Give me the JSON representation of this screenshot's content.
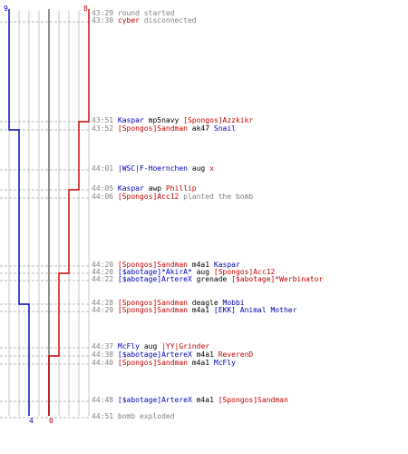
{
  "round": {
    "blue_start": "9",
    "red_start": "8",
    "blue_end": "4",
    "red_end": "0",
    "colors": {
      "blue": "#0000b0",
      "red": "#c00000",
      "time": "#808080",
      "grid": "#c8c8c8"
    }
  },
  "events": [
    {
      "time": "43:29",
      "parts": [
        {
          "text": "round started",
          "c": "sys"
        }
      ]
    },
    {
      "time": "43:30",
      "parts": [
        {
          "text": "cyber",
          "c": "n-red"
        },
        {
          "text": " disconnected",
          "c": "sys"
        }
      ]
    },
    {
      "time": "43:51",
      "parts": [
        {
          "text": "Kaspar",
          "c": "n-blue"
        },
        {
          "text": " mp5navy ",
          "c": "w"
        },
        {
          "text": "[Spongos]Azzkikr",
          "c": "n-red"
        }
      ]
    },
    {
      "time": "43:52",
      "parts": [
        {
          "text": "[Spongos]Sandman",
          "c": "n-red"
        },
        {
          "text": " ak47 ",
          "c": "w"
        },
        {
          "text": "Snail",
          "c": "n-blue"
        }
      ]
    },
    {
      "time": "44:01",
      "parts": [
        {
          "text": "|WSC|F-Hoernchen",
          "c": "n-blue"
        },
        {
          "text": " aug ",
          "c": "w"
        },
        {
          "text": "x",
          "c": "n-red"
        }
      ]
    },
    {
      "time": "44:05",
      "parts": [
        {
          "text": "Kaspar",
          "c": "n-blue"
        },
        {
          "text": " awp ",
          "c": "w"
        },
        {
          "text": "Phillip",
          "c": "n-red"
        }
      ]
    },
    {
      "time": "44:06",
      "parts": [
        {
          "text": "[Spongos]Acc12",
          "c": "n-red"
        },
        {
          "text": " planted the bomb",
          "c": "sys"
        }
      ]
    },
    {
      "time": "44:20",
      "parts": [
        {
          "text": "[Spongos]Sandman",
          "c": "n-red"
        },
        {
          "text": " m4a1 ",
          "c": "w"
        },
        {
          "text": "Kaspar",
          "c": "n-blue"
        }
      ]
    },
    {
      "time": "44:20",
      "parts": [
        {
          "text": "[$abotage]*AkirA*",
          "c": "n-blue"
        },
        {
          "text": " aug ",
          "c": "w"
        },
        {
          "text": "[Spongos]Acc12",
          "c": "n-red"
        }
      ]
    },
    {
      "time": "44:22",
      "parts": [
        {
          "text": "[$abotage]ArtereX",
          "c": "n-blue"
        },
        {
          "text": " grenade ",
          "c": "w"
        },
        {
          "text": "[$abotage]*Werbinator",
          "c": "n-red"
        }
      ]
    },
    {
      "time": "44:28",
      "parts": [
        {
          "text": "[Spongos]Sandman",
          "c": "n-red"
        },
        {
          "text": " deagle ",
          "c": "w"
        },
        {
          "text": "Mobbi",
          "c": "n-blue"
        }
      ]
    },
    {
      "time": "44:29",
      "parts": [
        {
          "text": "[Spongos]Sandman",
          "c": "n-red"
        },
        {
          "text": " m4a1 ",
          "c": "w"
        },
        {
          "text": "[EKK] Animal Mother",
          "c": "n-blue"
        }
      ]
    },
    {
      "time": "44:37",
      "parts": [
        {
          "text": "McFly",
          "c": "n-blue"
        },
        {
          "text": " aug ",
          "c": "w"
        },
        {
          "text": "|YY|Grinder",
          "c": "n-red"
        }
      ]
    },
    {
      "time": "44:38",
      "parts": [
        {
          "text": "[$abotage]ArtereX",
          "c": "n-blue"
        },
        {
          "text": " m4a1 ",
          "c": "w"
        },
        {
          "text": "ReverenD",
          "c": "n-red"
        }
      ]
    },
    {
      "time": "44:40",
      "parts": [
        {
          "text": "[Spongos]Sandman",
          "c": "n-red"
        },
        {
          "text": " m4a1 ",
          "c": "w"
        },
        {
          "text": "McFly",
          "c": "n-blue"
        }
      ]
    },
    {
      "time": "44:48",
      "parts": [
        {
          "text": "[$abotage]ArtereX",
          "c": "n-blue"
        },
        {
          "text": " m4a1 ",
          "c": "w"
        },
        {
          "text": "[Spongos]Sandman",
          "c": "n-red"
        }
      ]
    },
    {
      "time": "44:51",
      "parts": [
        {
          "text": "bomb exploded",
          "c": "sys"
        }
      ]
    }
  ]
}
